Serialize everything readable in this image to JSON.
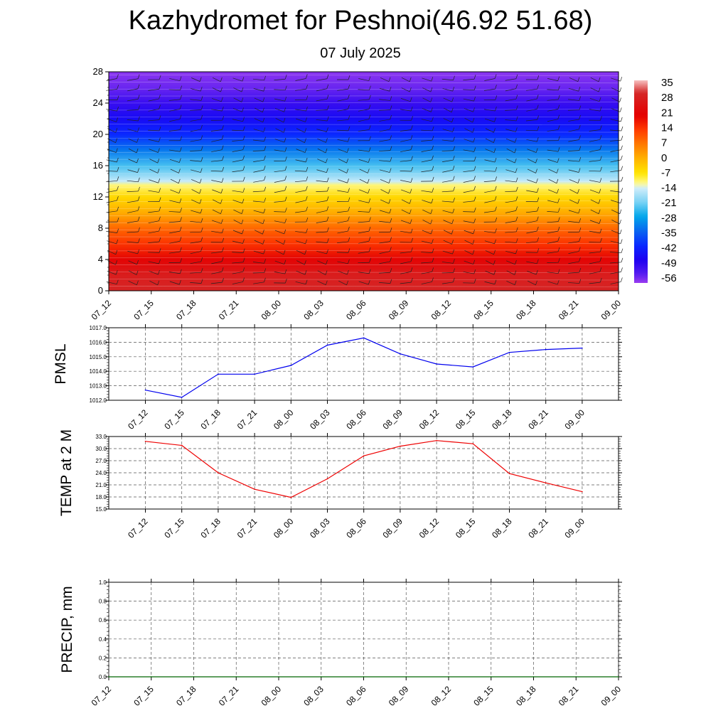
{
  "page": {
    "title": "Kazhydromet for Peshnoi(46.92 51.68)",
    "subtitle": "07 July 2025"
  },
  "chart_data": [
    {
      "type": "heatmap",
      "name": "temperature-wind-cross-section",
      "x_labels": [
        "07_12",
        "07_15",
        "07_18",
        "07_21",
        "08_00",
        "08_03",
        "08_06",
        "08_09",
        "08_12",
        "08_15",
        "08_18",
        "08_21",
        "09_00"
      ],
      "y_ticks": [
        0,
        4,
        8,
        12,
        16,
        20,
        24,
        28
      ],
      "ylim": [
        0,
        28
      ],
      "colorbar_labels": [
        "35",
        "28",
        "21",
        "14",
        "7",
        "0",
        "-7",
        "-14",
        "-21",
        "-28",
        "-35",
        "-42",
        "-49",
        "-56"
      ],
      "colorbar_range": [
        -60,
        38
      ],
      "color_stops": [
        {
          "value": 38,
          "color": "#f7c0c0"
        },
        {
          "value": 32,
          "color": "#d52828"
        },
        {
          "value": 21,
          "color": "#e40000"
        },
        {
          "value": 14,
          "color": "#ff3c00"
        },
        {
          "value": 7,
          "color": "#ff7a00"
        },
        {
          "value": 0,
          "color": "#ffb400"
        },
        {
          "value": -7,
          "color": "#ffe600"
        },
        {
          "value": -12,
          "color": "#fffa96"
        },
        {
          "value": -14,
          "color": "#d2eefa"
        },
        {
          "value": -21,
          "color": "#78d2f5"
        },
        {
          "value": -28,
          "color": "#00a6ea"
        },
        {
          "value": -35,
          "color": "#0a64f0"
        },
        {
          "value": -42,
          "color": "#0a28ff"
        },
        {
          "value": -49,
          "color": "#1e00f0"
        },
        {
          "value": -56,
          "color": "#5a1ef0"
        },
        {
          "value": -60,
          "color": "#9b3cf0"
        }
      ],
      "profile": [
        {
          "y": 0,
          "temp": 31
        },
        {
          "y": 2,
          "temp": 29
        },
        {
          "y": 4,
          "temp": 22
        },
        {
          "y": 6,
          "temp": 15
        },
        {
          "y": 8,
          "temp": 9
        },
        {
          "y": 10,
          "temp": 1
        },
        {
          "y": 12,
          "temp": -5
        },
        {
          "y": 13.5,
          "temp": -11
        },
        {
          "y": 14,
          "temp": -15
        },
        {
          "y": 16,
          "temp": -24
        },
        {
          "y": 18,
          "temp": -33
        },
        {
          "y": 20,
          "temp": -42
        },
        {
          "y": 22,
          "temp": -47
        },
        {
          "y": 24,
          "temp": -52
        },
        {
          "y": 26,
          "temp": -57
        },
        {
          "y": 28,
          "temp": -59
        }
      ]
    },
    {
      "type": "line",
      "name": "pmsl",
      "ylabel": "PMSL",
      "x": [
        "07_12",
        "07_15",
        "07_18",
        "07_21",
        "08_00",
        "08_03",
        "08_06",
        "08_09",
        "08_12",
        "08_15",
        "08_18",
        "08_21",
        "09_00"
      ],
      "x_extent": 14,
      "values": [
        1012.7,
        1012.2,
        1013.8,
        1013.8,
        1014.4,
        1015.8,
        1016.3,
        1015.2,
        1014.5,
        1014.3,
        1015.3,
        1015.5,
        1015.6
      ],
      "y_ticks": [
        "1012.0",
        "1013.0",
        "1014.0",
        "1015.0",
        "1016.0",
        "1017.0"
      ],
      "ylim": [
        1012,
        1017
      ],
      "color": "#0000ee"
    },
    {
      "type": "line",
      "name": "temp2m",
      "ylabel": "TEMP at 2 M",
      "x": [
        "07_12",
        "07_15",
        "07_18",
        "07_21",
        "08_00",
        "08_03",
        "08_06",
        "08_09",
        "08_12",
        "08_15",
        "08_18",
        "08_21",
        "09_00"
      ],
      "x_extent": 14,
      "values": [
        31.8,
        30.8,
        24.0,
        19.9,
        17.9,
        22.5,
        28.2,
        30.6,
        32.0,
        31.2,
        23.8,
        21.5,
        19.3
      ],
      "y_ticks": [
        "15.0",
        "18.0",
        "21.0",
        "24.0",
        "27.0",
        "30.0",
        "33.0"
      ],
      "ylim": [
        15,
        33
      ],
      "color": "#ee0000"
    },
    {
      "type": "line",
      "name": "precip",
      "ylabel": "PRECIP, mm",
      "x": [
        "07_12",
        "07_15",
        "07_18",
        "07_21",
        "08_00",
        "08_03",
        "08_06",
        "08_09",
        "08_12",
        "08_15",
        "08_18",
        "08_21",
        "09_00"
      ],
      "values": [
        0,
        0,
        0,
        0,
        0,
        0,
        0,
        0,
        0,
        0,
        0,
        0,
        0
      ],
      "y_ticks": [
        "0.0",
        "0.2",
        "0.4",
        "0.6",
        "0.8",
        "1.0"
      ],
      "ylim": [
        0,
        1
      ],
      "color": "#006400"
    }
  ]
}
